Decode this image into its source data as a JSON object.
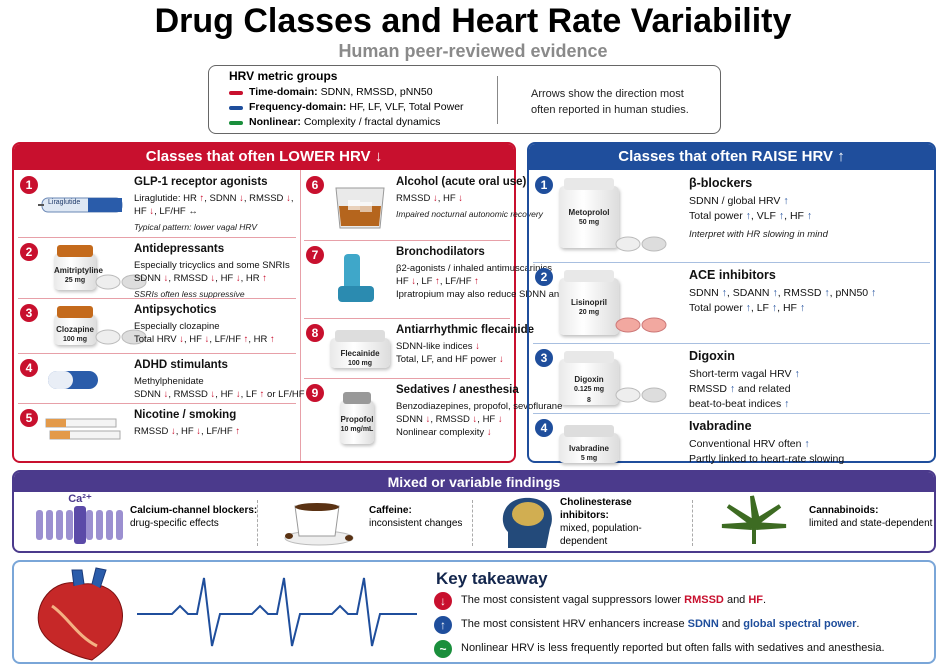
{
  "header": {
    "title": "Drug Classes and Heart Rate Variability",
    "subtitle": "Human peer-reviewed evidence"
  },
  "legend": {
    "title": "HRV metric groups",
    "items": [
      {
        "name": "Time-domain:",
        "text": "SDNN, RMSSD, pNN50"
      },
      {
        "name": "Frequency-domain:",
        "text": "HF, LF, VLF, Total Power"
      },
      {
        "name": "Nonlinear:",
        "text": "Complexity / fractal dynamics"
      }
    ],
    "note": "Arrows show the direction most often reported in human studies."
  },
  "lower": {
    "title": "Classes that often LOWER HRV ↓",
    "items": [
      {
        "number": "1",
        "name": "GLP-1 receptor agonists",
        "lines": [
          "Liraglutide: HR ↑, SDNN ↓, RMSSD ↓,",
          "HF ↓, LF/HF ↔"
        ],
        "note": "Typical pattern: lower vagal HRV",
        "label": [
          "Liraglutide"
        ]
      },
      {
        "number": "2",
        "name": "Antidepressants",
        "lines": [
          "Especially tricyclics and some SNRIs",
          "SDNN ↓, RMSSD ↓, HF ↓, HR ↑"
        ],
        "note": "SSRIs often less suppressive",
        "label": [
          "Amitriptyline",
          "25 mg"
        ]
      },
      {
        "number": "3",
        "name": "Antipsychotics",
        "lines": [
          "Especially clozapine",
          "Total HRV ↓, HF ↓, LF/HF ↑, HR ↑"
        ],
        "label": [
          "Clozapine",
          "100 mg"
        ]
      },
      {
        "number": "4",
        "name": "ADHD stimulants",
        "lines": [
          "Methylphenidate",
          "SDNN ↓, RMSSD ↓, HF ↓, LF ↑ or LF/HF ↑"
        ]
      },
      {
        "number": "5",
        "name": "Nicotine / smoking",
        "lines": [
          "RMSSD ↓, HF ↓, LF/HF ↑"
        ]
      },
      {
        "number": "6",
        "name": "Alcohol (acute oral use)",
        "lines": [
          "RMSSD ↓, HF ↓"
        ],
        "note": "Impaired nocturnal autonomic recovery"
      },
      {
        "number": "7",
        "name": "Bronchodilators",
        "lines": [
          "β2-agonists / inhaled antimuscarinics",
          "HF ↓, LF ↑, LF/HF ↑",
          "Ipratropium may also reduce SDNN and RMSSD"
        ]
      },
      {
        "number": "8",
        "name": "Antiarrhythmic flecainide",
        "lines": [
          "SDNN-like indices ↓",
          "Total, LF, and HF power ↓"
        ],
        "label": [
          "Flecainide",
          "100 mg"
        ]
      },
      {
        "number": "9",
        "name": "Sedatives / anesthesia",
        "lines": [
          "Benzodiazepines, propofol, sevoflurane",
          "SDNN ↓, RMSSD ↓, HF ↓",
          "Nonlinear complexity ↓"
        ],
        "label": [
          "Propofol",
          "10 mg/mL"
        ]
      }
    ]
  },
  "raise": {
    "title": "Classes that often RAISE HRV ↑",
    "items": [
      {
        "number": "1",
        "name": "β-blockers",
        "lines": [
          "SDNN / global HRV ↑",
          "Total power ↑, VLF ↑, HF ↑"
        ],
        "note": "Interpret with HR slowing in mind",
        "label": [
          "Metoprolol",
          "50 mg"
        ]
      },
      {
        "number": "2",
        "name": "ACE inhibitors",
        "lines": [
          "SDNN ↑, SDANN ↑, RMSSD ↑, pNN50 ↑",
          "Total power ↑, LF ↑, HF ↑"
        ],
        "label": [
          "Lisinopril",
          "20 mg"
        ]
      },
      {
        "number": "3",
        "name": "Digoxin",
        "lines": [
          "Short-term vagal HRV ↑",
          "RMSSD ↑ and related",
          "beat-to-beat indices ↑"
        ],
        "label": [
          "Digoxin",
          "0.125 mg",
          "8"
        ]
      },
      {
        "number": "4",
        "name": "Ivabradine",
        "lines": [
          "Conventional HRV often ↑",
          "Partly linked to heart-rate slowing"
        ],
        "label": [
          "Ivabradine",
          "5 mg"
        ]
      }
    ]
  },
  "mixed": {
    "title": "Mixed or variable findings",
    "icon_label": "Ca²⁺",
    "items": [
      {
        "name": "Calcium-channel blockers:",
        "text": "drug-specific effects"
      },
      {
        "name": "Caffeine:",
        "text": "inconsistent changes"
      },
      {
        "name": "Cholinesterase inhibitors:",
        "text": "mixed, population-dependent"
      },
      {
        "name": "Cannabinoids:",
        "text": "limited and state-dependent"
      }
    ]
  },
  "takeaway": {
    "title": "Key takeaway",
    "lines": [
      [
        "The most consistent vagal suppressors lower ",
        "RMSSD",
        " and ",
        "HF",
        "."
      ],
      [
        "The most consistent HRV enhancers increase ",
        "SDNN",
        " and ",
        "global spectral power",
        "."
      ],
      [
        "Nonlinear HRV is less frequently reported but often falls with sedatives and anesthesia."
      ]
    ]
  }
}
